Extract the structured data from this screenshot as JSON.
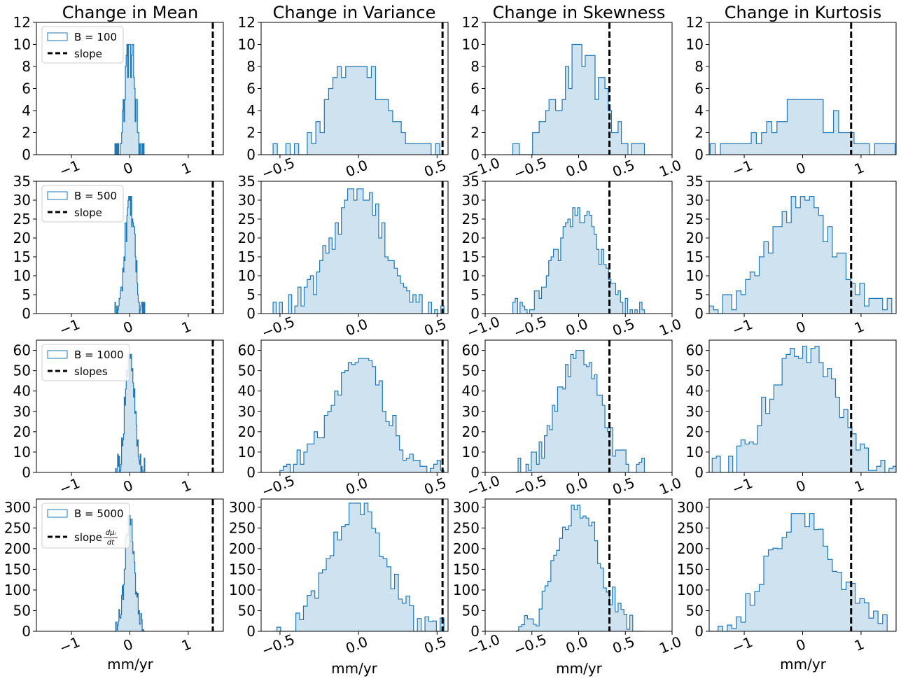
{
  "figure": {
    "column_titles": [
      "Change in Mean",
      "Change in Variance",
      "Change in Skewness",
      "Change in Kurtosis"
    ],
    "xlabel": "mm/yr",
    "hist_edge_color": "#1f77b4",
    "hist_fill_color": "#cfe2ef",
    "slope_line_color": "#000000"
  },
  "chart_data": [
    {
      "type": "histogram",
      "row": 0,
      "col": 0,
      "title": "Change in Mean",
      "ylim": [
        0,
        12
      ],
      "yticks": [
        0,
        2,
        4,
        6,
        8,
        10,
        12
      ],
      "xlim": [
        -1.6,
        1.6
      ],
      "xticks": [
        -1,
        0,
        1
      ],
      "slope_x": 1.42,
      "sd": 0.08,
      "bins": 40,
      "peak": 10,
      "legend": {
        "hist": "B = 100",
        "slope": "slope"
      }
    },
    {
      "type": "histogram",
      "row": 0,
      "col": 1,
      "title": "Change in Variance",
      "ylim": [
        0,
        12
      ],
      "yticks": [
        0,
        2,
        4,
        6,
        8,
        10,
        12
      ],
      "xlim": [
        -0.62,
        0.57
      ],
      "xticks": [
        -0.5,
        0.0,
        0.5
      ],
      "slope_x": 0.535,
      "sd": 0.17,
      "bins": 40,
      "peak": 8
    },
    {
      "type": "histogram",
      "row": 0,
      "col": 2,
      "title": "Change in Skewness",
      "ylim": [
        0,
        12
      ],
      "yticks": [
        0,
        2,
        4,
        6,
        8,
        10,
        12
      ],
      "xlim": [
        -1.0,
        1.0
      ],
      "xticks": [
        -1.0,
        -0.5,
        0.0,
        0.5,
        1.0
      ],
      "slope_x": 0.33,
      "sd": 0.22,
      "bins": 40,
      "peak": 10
    },
    {
      "type": "histogram",
      "row": 0,
      "col": 3,
      "title": "Change in Kurtosis",
      "ylim": [
        0,
        12
      ],
      "yticks": [
        0,
        2,
        4,
        6,
        8,
        10,
        12
      ],
      "xlim": [
        -1.6,
        1.6
      ],
      "xticks": [
        -1,
        0,
        1
      ],
      "slope_x": 0.83,
      "sd": 0.55,
      "bins": 40,
      "peak": 5
    },
    {
      "type": "histogram",
      "row": 1,
      "col": 0,
      "ylim": [
        0,
        35
      ],
      "yticks": [
        0,
        5,
        10,
        15,
        20,
        25,
        30,
        35
      ],
      "xlim": [
        -1.6,
        1.6
      ],
      "xticks": [
        -1,
        0,
        1
      ],
      "slope_x": 1.42,
      "sd": 0.08,
      "bins": 50,
      "peak": 31,
      "legend": {
        "hist": "B = 500",
        "slope": "slope"
      }
    },
    {
      "type": "histogram",
      "row": 1,
      "col": 1,
      "ylim": [
        0,
        35
      ],
      "yticks": [
        0,
        5,
        10,
        15,
        20,
        25,
        30,
        35
      ],
      "xlim": [
        -0.62,
        0.57
      ],
      "xticks": [
        -0.5,
        0.0,
        0.5
      ],
      "slope_x": 0.535,
      "sd": 0.17,
      "bins": 55,
      "peak": 33
    },
    {
      "type": "histogram",
      "row": 1,
      "col": 2,
      "ylim": [
        0,
        35
      ],
      "yticks": [
        0,
        5,
        10,
        15,
        20,
        25,
        30,
        35
      ],
      "xlim": [
        -1.0,
        1.0
      ],
      "xticks": [
        -1.0,
        -0.5,
        0.0,
        0.5,
        1.0
      ],
      "slope_x": 0.33,
      "sd": 0.22,
      "bins": 55,
      "peak": 28
    },
    {
      "type": "histogram",
      "row": 1,
      "col": 3,
      "ylim": [
        0,
        35
      ],
      "yticks": [
        0,
        5,
        10,
        15,
        20,
        25,
        30,
        35
      ],
      "xlim": [
        -1.6,
        1.6
      ],
      "xticks": [
        -1,
        0,
        1
      ],
      "slope_x": 0.83,
      "sd": 0.55,
      "bins": 45,
      "peak": 31
    },
    {
      "type": "histogram",
      "row": 2,
      "col": 0,
      "ylim": [
        0,
        65
      ],
      "yticks": [
        0,
        10,
        20,
        30,
        40,
        50,
        60
      ],
      "xlim": [
        -1.6,
        1.6
      ],
      "xticks": [
        -1,
        0,
        1
      ],
      "slope_x": 1.42,
      "sd": 0.08,
      "bins": 45,
      "peak": 58,
      "legend": {
        "hist": "B = 1000",
        "slope": "slopes"
      }
    },
    {
      "type": "histogram",
      "row": 2,
      "col": 1,
      "ylim": [
        0,
        65
      ],
      "yticks": [
        0,
        10,
        20,
        30,
        40,
        50,
        60
      ],
      "xlim": [
        -0.62,
        0.57
      ],
      "xticks": [
        -0.5,
        0.0,
        0.5
      ],
      "slope_x": 0.535,
      "sd": 0.17,
      "bins": 50,
      "peak": 56
    },
    {
      "type": "histogram",
      "row": 2,
      "col": 2,
      "ylim": [
        0,
        65
      ],
      "yticks": [
        0,
        10,
        20,
        30,
        40,
        50,
        60
      ],
      "xlim": [
        -1.0,
        1.0
      ],
      "xticks": [
        -1.0,
        -0.5,
        0.0,
        0.5,
        1.0
      ],
      "slope_x": 0.33,
      "sd": 0.22,
      "bins": 50,
      "peak": 60
    },
    {
      "type": "histogram",
      "row": 2,
      "col": 3,
      "ylim": [
        0,
        65
      ],
      "yticks": [
        0,
        10,
        20,
        30,
        40,
        50,
        60
      ],
      "xlim": [
        -1.6,
        1.6
      ],
      "xticks": [
        -1,
        0,
        1
      ],
      "slope_x": 0.83,
      "sd": 0.55,
      "bins": 50,
      "peak": 62
    },
    {
      "type": "histogram",
      "row": 3,
      "col": 0,
      "ylim": [
        0,
        320
      ],
      "yticks": [
        0,
        50,
        100,
        150,
        200,
        250,
        300
      ],
      "xlim": [
        -1.6,
        1.6
      ],
      "xticks": [
        -1,
        0,
        1
      ],
      "slope_x": 1.42,
      "sd": 0.08,
      "bins": 45,
      "peak": 280,
      "legend": {
        "hist": "B = 5000",
        "slope": "slope",
        "slope_math": "dμᵢ/dt"
      }
    },
    {
      "type": "histogram",
      "row": 3,
      "col": 1,
      "ylim": [
        0,
        320
      ],
      "yticks": [
        0,
        50,
        100,
        150,
        200,
        250,
        300
      ],
      "xlim": [
        -0.62,
        0.57
      ],
      "xticks": [
        -0.5,
        0.0,
        0.5
      ],
      "slope_x": 0.535,
      "sd": 0.17,
      "bins": 45,
      "peak": 310
    },
    {
      "type": "histogram",
      "row": 3,
      "col": 2,
      "ylim": [
        0,
        320
      ],
      "yticks": [
        0,
        50,
        100,
        150,
        200,
        250,
        300
      ],
      "xlim": [
        -1.0,
        1.0
      ],
      "xticks": [
        -1.0,
        -0.5,
        0.0,
        0.5,
        1.0
      ],
      "slope_x": 0.33,
      "sd": 0.22,
      "bins": 45,
      "peak": 305
    },
    {
      "type": "histogram",
      "row": 3,
      "col": 3,
      "ylim": [
        0,
        320
      ],
      "yticks": [
        0,
        50,
        100,
        150,
        200,
        250,
        300
      ],
      "xlim": [
        -1.6,
        1.6
      ],
      "xticks": [
        -1,
        0,
        1
      ],
      "slope_x": 0.83,
      "sd": 0.55,
      "bins": 45,
      "peak": 285
    }
  ]
}
